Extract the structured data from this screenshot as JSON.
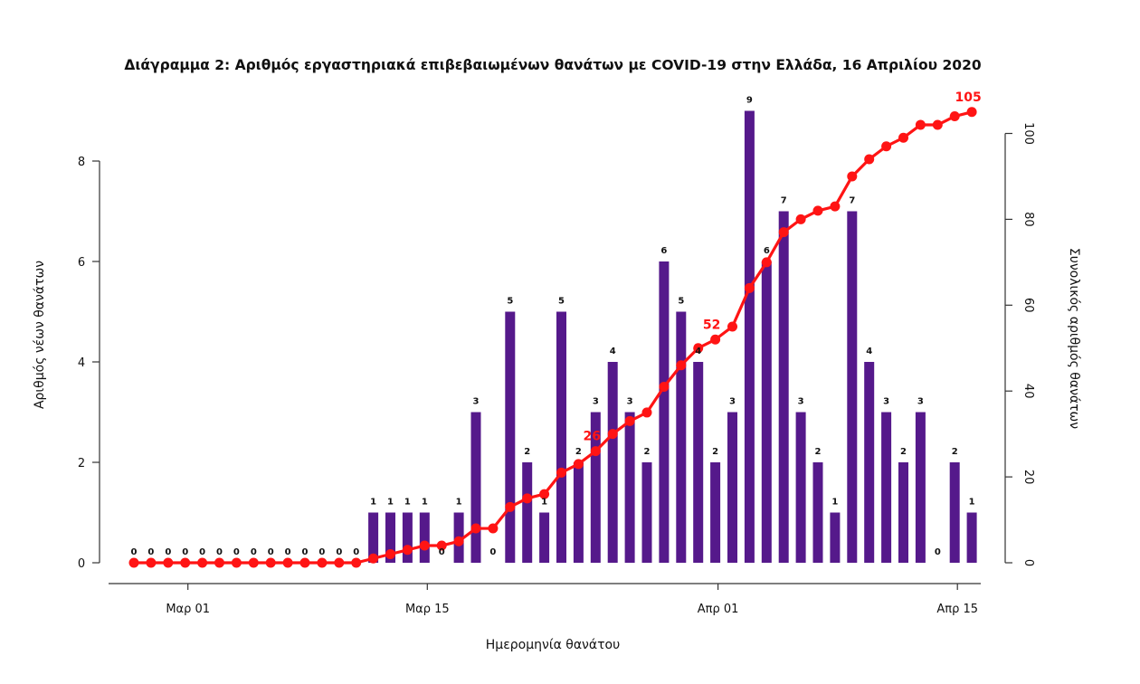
{
  "chart_data": {
    "type": "bar+line",
    "title": "Διάγραμμα 2: Αριθμός εργαστηριακά επιβεβαιωμένων θανάτων με COVID-19 στην Ελλάδα, 16 Απριλίου 2020",
    "xlabel": "Ημερομηνία θανάτου",
    "ylabel_left": "Αριθμός νέων θανάτων",
    "ylabel_right": "Συνολικός αριθμός θανάτων",
    "ylim_left": [
      0,
      9
    ],
    "ylim_right": [
      0,
      105
    ],
    "yticks_left": [
      "0",
      "2",
      "4",
      "6",
      "8"
    ],
    "yticks_right": [
      "0",
      "20",
      "40",
      "60",
      "80",
      "100"
    ],
    "x_ticks": [
      {
        "label": "Μαρ 01",
        "day_index": 3
      },
      {
        "label": "Μαρ 15",
        "day_index": 17
      },
      {
        "label": "Απρ 01",
        "day_index": 34
      },
      {
        "label": "Απρ 15",
        "day_index": 48
      }
    ],
    "start_date": "Feb 27",
    "bar_color": "#55198b",
    "line_color": "#ff1414",
    "daily_deaths": [
      0,
      0,
      0,
      0,
      0,
      0,
      0,
      0,
      0,
      0,
      0,
      0,
      0,
      0,
      1,
      1,
      1,
      1,
      0,
      1,
      3,
      0,
      5,
      2,
      1,
      5,
      2,
      3,
      4,
      3,
      2,
      6,
      5,
      4,
      2,
      3,
      9,
      6,
      7,
      3,
      2,
      1,
      7,
      4,
      3,
      2,
      3,
      0,
      2,
      1
    ],
    "cumulative_deaths": [
      0,
      0,
      0,
      0,
      0,
      0,
      0,
      0,
      0,
      0,
      0,
      0,
      0,
      0,
      1,
      2,
      3,
      4,
      4,
      5,
      8,
      8,
      13,
      15,
      16,
      21,
      23,
      26,
      30,
      33,
      35,
      41,
      46,
      50,
      52,
      55,
      64,
      70,
      77,
      80,
      82,
      83,
      90,
      94,
      97,
      99,
      102,
      102,
      104,
      105
    ],
    "cumulative_highlights": [
      {
        "day_index": 27,
        "label": "26"
      },
      {
        "day_index": 34,
        "label": "52"
      },
      {
        "day_index": 49,
        "label": "105"
      }
    ]
  }
}
